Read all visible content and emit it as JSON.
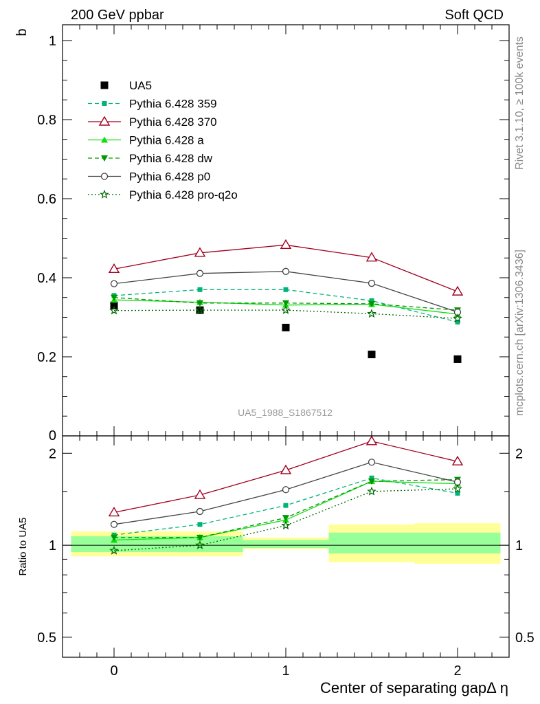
{
  "header": {
    "left": "200 GeV ppbar",
    "right": "Soft QCD",
    "side_top": "Rivet 3.1.10, ≥ 100k events",
    "side_bottom": "mcplots.cern.ch [arXiv:1306.3436]",
    "watermark": "UA5_1988_S1867512"
  },
  "axes": {
    "main_ylabel": "b",
    "ratio_ylabel": "Ratio to UA5",
    "xlabel": "Center of separating gapΔ η"
  },
  "chart_data": [
    {
      "type": "line",
      "panel": "main",
      "x": [
        0,
        0.5,
        1,
        1.5,
        2
      ],
      "xlim": [
        -0.3,
        2.3
      ],
      "ylim": [
        0,
        1.04
      ],
      "xticks": [
        0,
        1,
        2
      ],
      "yticks": [
        0.2,
        0.4,
        0.6,
        0.8,
        1
      ],
      "ytick_labels": [
        "0.2",
        "0.4",
        "0.6",
        "0.8",
        "1"
      ],
      "ytick_bottom": "0",
      "legend_position": "top-left",
      "series": [
        {
          "name": "UA5",
          "values": [
            0.33,
            0.318,
            0.274,
            0.206,
            0.194
          ],
          "color": "#000000",
          "marker": "square",
          "line": "none"
        },
        {
          "name": "Pythia 6.428 359",
          "values": [
            0.355,
            0.37,
            0.37,
            0.342,
            0.288
          ],
          "color": "#00b37a",
          "marker": "square-small",
          "line": "dashed"
        },
        {
          "name": "Pythia 6.428 370",
          "values": [
            0.422,
            0.463,
            0.483,
            0.451,
            0.365
          ],
          "color": "#a0001e",
          "marker": "triangle-open",
          "line": "solid"
        },
        {
          "name": "Pythia 6.428 a",
          "values": [
            0.344,
            0.338,
            0.331,
            0.333,
            0.308
          ],
          "color": "#11dd11",
          "marker": "triangle",
          "line": "solid"
        },
        {
          "name": "Pythia 6.428 dw",
          "values": [
            0.35,
            0.336,
            0.336,
            0.334,
            0.318
          ],
          "color": "#009900",
          "marker": "triangle-down",
          "line": "dashed"
        },
        {
          "name": "Pythia 6.428 p0",
          "values": [
            0.385,
            0.411,
            0.416,
            0.386,
            0.313
          ],
          "color": "#444444",
          "marker": "circle-open",
          "line": "solid"
        },
        {
          "name": "Pythia 6.428 pro-q2o",
          "values": [
            0.317,
            0.318,
            0.318,
            0.309,
            0.297
          ],
          "color": "#006600",
          "marker": "star",
          "line": "dotted"
        }
      ]
    },
    {
      "type": "line",
      "panel": "ratio",
      "x": [
        0,
        0.5,
        1,
        1.5,
        2
      ],
      "xlim": [
        -0.3,
        2.3
      ],
      "ylim": [
        0.43,
        2.28
      ],
      "yscale": "log",
      "yticks": [
        0.5,
        1,
        2
      ],
      "ytick_labels": [
        "0.5",
        "1",
        "2"
      ],
      "xtick_labels": [
        "0",
        "1",
        "2"
      ],
      "bands": [
        {
          "x0": -0.25,
          "x1": 0.75,
          "yellow": [
            0.92,
            1.11
          ],
          "green": [
            0.95,
            1.07
          ]
        },
        {
          "x0": 0.75,
          "x1": 1.25,
          "yellow": [
            0.97,
            1.06
          ],
          "green": [
            0.98,
            1.04
          ]
        },
        {
          "x0": 1.25,
          "x1": 1.75,
          "yellow": [
            0.88,
            1.17
          ],
          "green": [
            0.94,
            1.1
          ]
        },
        {
          "x0": 1.75,
          "x1": 2.25,
          "yellow": [
            0.87,
            1.18
          ],
          "green": [
            0.94,
            1.1
          ]
        }
      ],
      "series": [
        {
          "name": "Pythia 6.428 359",
          "values": [
            1.08,
            1.17,
            1.35,
            1.66,
            1.48
          ],
          "color": "#00b37a",
          "marker": "square-small",
          "line": "dashed"
        },
        {
          "name": "Pythia 6.428 370",
          "values": [
            1.28,
            1.46,
            1.76,
            2.19,
            1.88
          ],
          "color": "#a0001e",
          "marker": "triangle-open",
          "line": "solid"
        },
        {
          "name": "Pythia 6.428 a",
          "values": [
            1.04,
            1.06,
            1.21,
            1.62,
            1.59
          ],
          "color": "#11dd11",
          "marker": "triangle",
          "line": "solid"
        },
        {
          "name": "Pythia 6.428 dw",
          "values": [
            1.06,
            1.06,
            1.23,
            1.62,
            1.64
          ],
          "color": "#009900",
          "marker": "triangle-down",
          "line": "dashed"
        },
        {
          "name": "Pythia 6.428 p0",
          "values": [
            1.17,
            1.29,
            1.52,
            1.87,
            1.61
          ],
          "color": "#444444",
          "marker": "circle-open",
          "line": "solid"
        },
        {
          "name": "Pythia 6.428 pro-q2o",
          "values": [
            0.96,
            1.0,
            1.16,
            1.5,
            1.53
          ],
          "color": "#006600",
          "marker": "star",
          "line": "dotted"
        }
      ]
    }
  ]
}
